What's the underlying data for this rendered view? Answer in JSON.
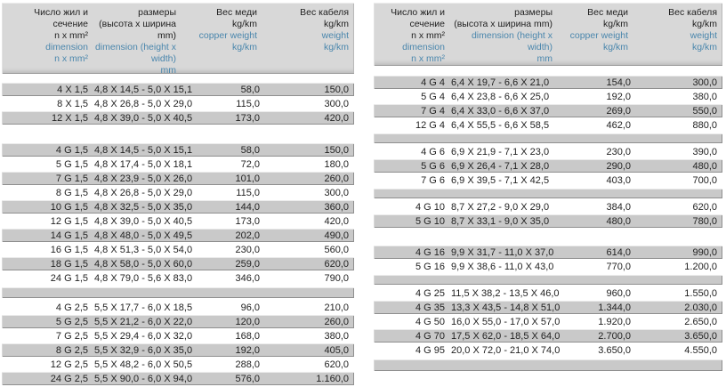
{
  "colors": {
    "row_gray": "#c9c9c9",
    "header_gray": "#d8d8d8",
    "text_dark": "#1f1f1f",
    "text_blue": "#4b87ad"
  },
  "tables": [
    {
      "id": "left",
      "header": {
        "cols": [
          {
            "ru": "Число жил и\nсечение\nn x mm²",
            "en": "dimension\nn x mm²"
          },
          {
            "ru": "размеры\n(высота x ширина\nmm)",
            "en": "dimension (height x\nwidth)\nmm"
          },
          {
            "ru": "Вес меди\nkg/km",
            "en": "copper weight\nkg/km"
          },
          {
            "ru": "Вес кабеля\nkg/km",
            "en": "weight\nkg/km"
          }
        ]
      },
      "blocks": [
        {
          "kind": "rows",
          "first_shade": "gray",
          "rows": [
            [
              "4 X 1,5",
              "4,8 X 14,5 - 5,0 X 15,1",
              "58,0",
              "150,0"
            ],
            [
              "8 X 1,5",
              "4,8 X 26,8 - 5,0 X 29,0",
              "115,0",
              "300,0"
            ],
            [
              "12 X 1,5",
              "4,8 X 39,0 - 5,0 X 40,5",
              "173,0",
              "420,0"
            ]
          ]
        },
        {
          "kind": "gap"
        },
        {
          "kind": "rows",
          "first_shade": "gray",
          "rows": [
            [
              "4 G 1,5",
              "4,8 X 14,5 - 5,0 X 15,1",
              "58,0",
              "150,0"
            ],
            [
              "5 G 1,5",
              "4,8 X 17,4 - 5,0 X 18,1",
              "72,0",
              "180,0"
            ],
            [
              "7 G 1,5",
              "4,8 X 23,9 - 5,0 X 26,0",
              "101,0",
              "260,0"
            ],
            [
              "8 G 1,5",
              "4,8 X 26,8 - 5,0 X 29,0",
              "115,0",
              "300,0"
            ],
            [
              "10 G 1,5",
              "4,8 X 32,5 - 5,0 X 35,0",
              "144,0",
              "360,0"
            ],
            [
              "12 G 1,5",
              "4,8 X 39,0 - 5,0 X 40,5",
              "173,0",
              "420,0"
            ],
            [
              "14 G 1,5",
              "4,8 X 48,0 - 5,0 X 49,5",
              "202,0",
              "490,0"
            ],
            [
              "16 G 1,5",
              "4,8 X 51,3 - 5,0 X 54,0",
              "230,0",
              "560,0"
            ],
            [
              "18 G 1,5",
              "4,8 X 58,0 - 5,0 X 60,0",
              "259,0",
              "620,0"
            ],
            [
              "24 G 1,5",
              "4,8 X 79,0 - 5,6 X 83,0",
              "346,0",
              "790,0"
            ]
          ]
        },
        {
          "kind": "spacer"
        },
        {
          "kind": "rows",
          "first_shade": "white",
          "rows": [
            [
              "4 G 2,5",
              "5,5 X 17,7 - 6,0 X 18,5",
              "96,0",
              "210,0"
            ],
            [
              "5 G 2,5",
              "5,5 X 21,2 - 6,0 X 22,0",
              "120,0",
              "260,0"
            ],
            [
              "7 G 2,5",
              "5,5 X 29,4 - 6,0 X 32,0",
              "168,0",
              "380,0"
            ],
            [
              "8 G 2,5",
              "5,5 X 32,9 - 6,0 X 35,0",
              "192,0",
              "405,0"
            ],
            [
              "12 G 2,5",
              "5,5 X 48,2 - 6,0 X 50,5",
              "288,0",
              "620,0"
            ],
            [
              "24 G 2,5",
              "5,5 X 90,0 - 6,0 X 94,0",
              "576,0",
              "1.160,0"
            ]
          ]
        }
      ]
    },
    {
      "id": "right",
      "header": {
        "cols": [
          {
            "ru": "Число жил и\nсечение\nn x mm²",
            "en": "dimension\nn x mm²"
          },
          {
            "ru": "размеры\n(высота x ширина mm)",
            "en": "dimension (height x\nwidth)\nmm"
          },
          {
            "ru": "Вес меди\nkg/km",
            "en": "copper weight\nkg/km"
          },
          {
            "ru": "Вес кабеля\nkg/km",
            "en": "weight\nkg/km"
          }
        ]
      },
      "blocks": [
        {
          "kind": "rows",
          "first_shade": "gray",
          "rows": [
            [
              "4 G 4",
              "6,4 X 19,7 - 6,6 X 21,0",
              "154,0",
              "300,0"
            ],
            [
              "5 G 4",
              "6,4 X 23,8 - 6,6 X 25,0",
              "192,0",
              "380,0"
            ],
            [
              "7 G 4",
              "6,4 X 33,0 - 6,6 X 37,0",
              "269,0",
              "550,0"
            ],
            [
              "12 G 4",
              "6,4 X 55,5 - 6,6 X 58,5",
              "462,0",
              "880,0"
            ]
          ]
        },
        {
          "kind": "spacer"
        },
        {
          "kind": "rows",
          "first_shade": "white",
          "rows": [
            [
              "4 G 6",
              "6,9 X 21,9 - 7,1 X 23,0",
              "230,0",
              "390,0"
            ],
            [
              "5 G 6",
              "6,9 X 26,4 - 7,1 X 28,0",
              "290,0",
              "480,0"
            ],
            [
              "7 G 6",
              "6,9 X 39,5 - 7,1 X 42,5",
              "403,0",
              "700,0"
            ]
          ]
        },
        {
          "kind": "spacer"
        },
        {
          "kind": "rows",
          "first_shade": "white",
          "rows": [
            [
              "4 G 10",
              "8,7 X 27,2 - 9,0 X 29,0",
              "384,0",
              "620,0"
            ],
            [
              "5 G 10",
              "8,7 X 33,1 - 9,0 X 35,0",
              "480,0",
              "780,0"
            ]
          ]
        },
        {
          "kind": "gap"
        },
        {
          "kind": "rows",
          "first_shade": "gray",
          "rows": [
            [
              "4 G 16",
              "9,9 X 31,7 - 11,0 X 37,0",
              "614,0",
              "990,0"
            ],
            [
              "5 G 16",
              "9,9 X 38,6 - 11,0 X 43,0",
              "770,0",
              "1.200,0"
            ]
          ]
        },
        {
          "kind": "spacer"
        },
        {
          "kind": "rows",
          "first_shade": "white",
          "rows": [
            [
              "4 G 25",
              "11,5 X 38,2 - 13,5 X 46,0",
              "960,0",
              "1.550,0"
            ],
            [
              "4 G 35",
              "13,3 X 43,5 - 14,8 X 51,0",
              "1.344,0",
              "2.030,0"
            ],
            [
              "4 G 50",
              "16,0 X 55,0 - 17,0 X 57,0",
              "1.920,0",
              "2.650,0"
            ],
            [
              "4 G 70",
              "17,5 X 62,0 - 18,5 X 64,0",
              "2.700,0",
              "3.650,0"
            ],
            [
              "4 G 95",
              "20,0 X 72,0 - 21,0 X 74,0",
              "3.650,0",
              "4.550,0"
            ]
          ]
        },
        {
          "kind": "spacer",
          "last": true
        }
      ]
    }
  ]
}
